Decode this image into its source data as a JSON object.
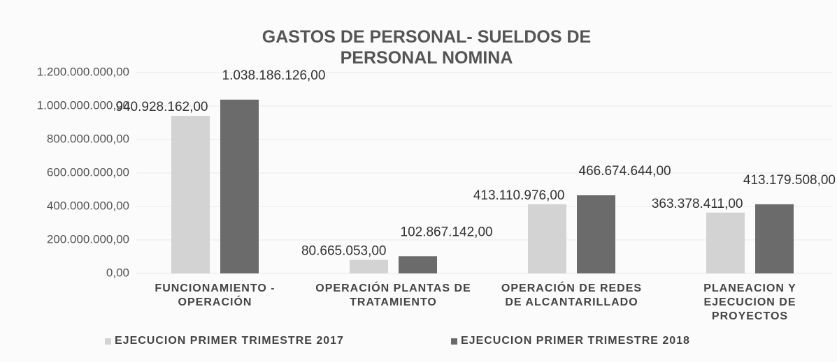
{
  "chart_data": {
    "type": "bar",
    "title": "GASTOS DE PERSONAL- SUELDOS DE PERSONAL NOMINA",
    "categories": [
      "FUNCIONAMIENTO - OPERACIÓN",
      "OPERACIÓN PLANTAS DE TRATAMIENTO",
      "OPERACIÓN DE REDES DE ALCANTARILLADO",
      "PLANEACION Y EJECUCION DE PROYECTOS"
    ],
    "series": [
      {
        "name": "EJECUCION PRIMER TRIMESTRE 2017",
        "color": "#d3d3d3",
        "values": [
          940928162,
          80665053,
          413110976,
          363378411
        ],
        "value_labels": [
          "940.928.162,00",
          "80.665.053,00",
          "413.110.976,00",
          "363.378.411,00"
        ]
      },
      {
        "name": "EJECUCION PRIMER TRIMESTRE 2018",
        "color": "#6b6b6b",
        "values": [
          1038186126,
          102867142,
          466674644,
          413179508
        ],
        "value_labels": [
          "1.038.186.126,00",
          "102.867.142,00",
          "466.674.644,00",
          "413.179.508,00"
        ]
      }
    ],
    "ylim": [
      0,
      1200000000
    ],
    "yticks": [
      {
        "value": 0,
        "label": "0,00"
      },
      {
        "value": 200000000,
        "label": "200.000.000,00"
      },
      {
        "value": 400000000,
        "label": "400.000.000,00"
      },
      {
        "value": 600000000,
        "label": "600.000.000,00"
      },
      {
        "value": 800000000,
        "label": "800.000.000,00"
      },
      {
        "value": 1000000000,
        "label": "1.000.000.000,00"
      },
      {
        "value": 1200000000,
        "label": "1.200.000.000,00"
      }
    ],
    "grid": true,
    "legend": "bottom"
  }
}
